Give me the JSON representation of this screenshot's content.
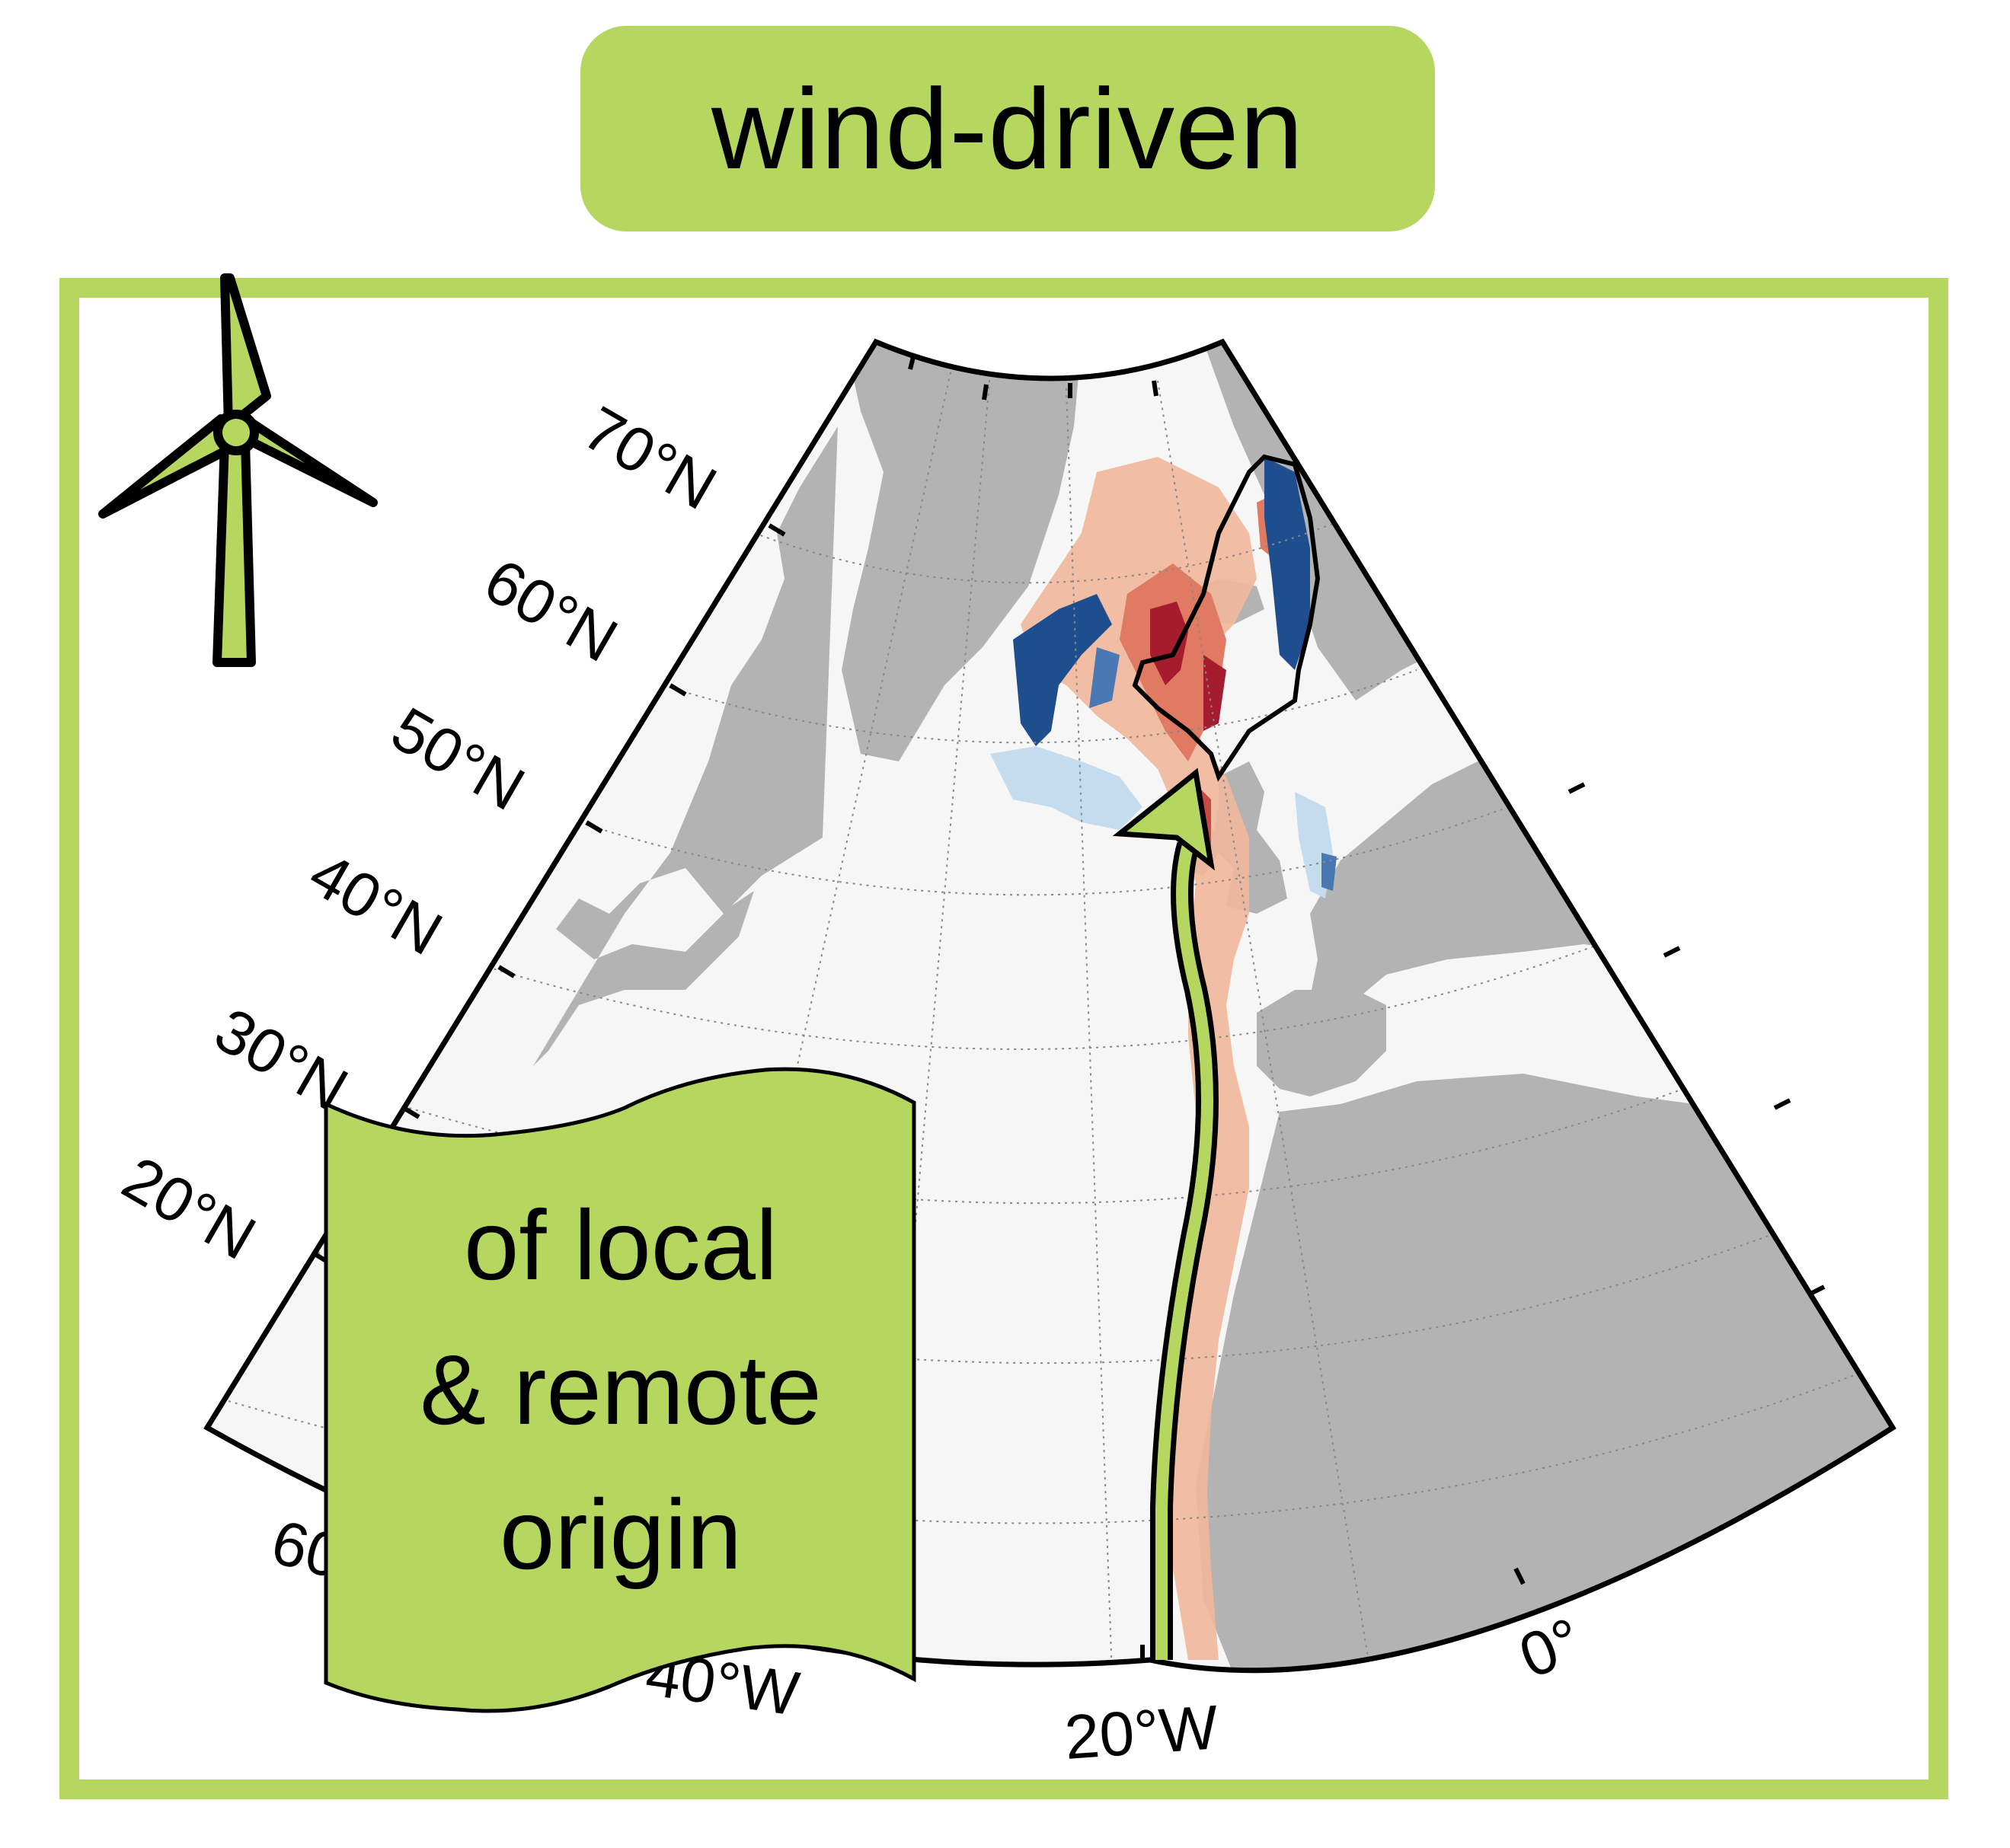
{
  "title": "wind-driven",
  "banner": {
    "line1": "of local",
    "line2": "& remote",
    "line3": "origin"
  },
  "lat_labels": [
    "70°N",
    "60°N",
    "50°N",
    "40°N",
    "30°N",
    "20°N"
  ],
  "lon_labels": [
    "60°W",
    "40°W",
    "20°W",
    "0°"
  ],
  "colors": {
    "accent": "#b5d75f",
    "land": "#b3b3b3",
    "ocean": "#f6f6f6",
    "positive_strong": "#a51c2e",
    "positive_weak": "#f1b79b",
    "negative_strong": "#1f4e8f",
    "negative_weak": "#c4dcee"
  },
  "icons": {
    "turbine": "wind-turbine-icon",
    "arrow": "northward-flow-arrow"
  }
}
